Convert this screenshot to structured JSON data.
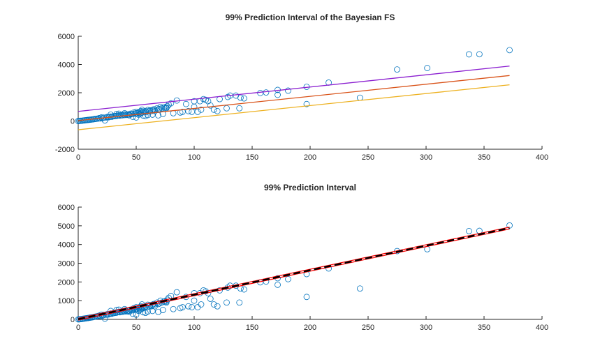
{
  "chart_data": [
    {
      "type": "scatter",
      "title": "99% Prediction Interval of the Bayesian FS",
      "xlim": [
        0,
        400
      ],
      "ylim": [
        -2000,
        6000
      ],
      "xticks": [
        "0",
        "50",
        "100",
        "150",
        "200",
        "250",
        "300",
        "350",
        "400"
      ],
      "yticks": [
        "-2000",
        "0",
        "2000",
        "4000",
        "6000"
      ],
      "grid": false,
      "marker_color": "#0072BD",
      "lines": [
        {
          "role": "upper",
          "color": "#8B1FD0",
          "x": [
            0,
            372
          ],
          "y": [
            680,
            3890
          ]
        },
        {
          "role": "fit",
          "color": "#D95319",
          "x": [
            0,
            372
          ],
          "y": [
            30,
            3220
          ]
        },
        {
          "role": "lower",
          "color": "#EDB120",
          "x": [
            0,
            372
          ],
          "y": [
            -620,
            2560
          ]
        }
      ]
    },
    {
      "type": "scatter",
      "title": "99% Prediction Interval",
      "xlim": [
        0,
        400
      ],
      "ylim": [
        0,
        6000
      ],
      "xticks": [
        "0",
        "50",
        "100",
        "150",
        "200",
        "250",
        "300",
        "350",
        "400"
      ],
      "yticks": [
        "0",
        "1000",
        "2000",
        "3000",
        "4000",
        "5000",
        "6000"
      ],
      "grid": false,
      "marker_color": "#0072BD",
      "lines": [
        {
          "role": "upper",
          "color": "#FF0000",
          "x": [
            0,
            372
          ],
          "y": [
            60,
            4930
          ]
        },
        {
          "role": "lower",
          "color": "#FF0000",
          "x": [
            0,
            372
          ],
          "y": [
            -40,
            4830
          ]
        },
        {
          "role": "fit",
          "color": "#000000",
          "dashed": true,
          "x": [
            0,
            372
          ],
          "y": [
            10,
            4880
          ]
        }
      ]
    }
  ],
  "points": {
    "x": [
      372,
      346,
      337,
      301,
      275,
      243,
      216,
      197,
      197,
      181,
      172,
      172,
      162,
      157,
      143,
      140,
      139,
      136,
      131,
      129,
      128,
      122,
      120,
      117,
      114,
      112,
      110,
      108,
      106,
      105,
      103,
      100,
      100,
      98,
      95,
      93,
      90,
      88,
      85,
      82,
      80,
      78,
      77,
      76,
      75,
      74,
      72,
      71,
      70,
      69,
      68,
      66,
      65,
      64,
      63,
      62,
      61,
      60,
      59,
      58,
      57,
      56,
      55,
      55,
      54,
      54,
      53,
      53,
      52,
      52,
      51,
      50,
      50,
      49,
      48,
      47,
      46,
      45,
      44,
      43,
      42,
      41,
      40,
      39,
      38,
      37,
      36,
      35,
      34,
      33,
      32,
      31,
      30,
      29,
      28,
      27,
      26,
      25,
      24,
      23,
      22,
      21,
      20,
      19,
      18,
      17,
      16,
      15,
      14,
      13,
      12,
      11,
      10,
      9,
      8,
      7,
      6,
      5,
      4,
      3,
      2,
      1,
      1,
      0,
      56,
      60,
      64,
      69,
      73,
      47,
      50,
      58,
      66,
      76,
      33,
      40,
      44,
      35,
      28
    ],
    "y": [
      5020,
      4730,
      4720,
      3750,
      3650,
      1650,
      2720,
      2420,
      1200,
      2150,
      2200,
      1850,
      2020,
      1980,
      1600,
      1650,
      900,
      1800,
      1800,
      1700,
      900,
      1550,
      700,
      800,
      1100,
      1400,
      1500,
      1550,
      800,
      1400,
      650,
      1000,
      1400,
      650,
      700,
      1200,
      650,
      600,
      1450,
      550,
      1250,
      1150,
      1050,
      900,
      980,
      950,
      900,
      1000,
      850,
      820,
      900,
      800,
      820,
      780,
      700,
      760,
      700,
      780,
      650,
      700,
      620,
      680,
      800,
      600,
      700,
      550,
      650,
      500,
      600,
      450,
      550,
      560,
      650,
      520,
      600,
      500,
      480,
      520,
      460,
      470,
      430,
      480,
      420,
      450,
      400,
      420,
      380,
      400,
      380,
      360,
      350,
      340,
      330,
      300,
      310,
      290,
      260,
      280,
      250,
      40,
      240,
      200,
      250,
      180,
      200,
      170,
      160,
      150,
      140,
      120,
      110,
      100,
      90,
      80,
      70,
      60,
      50,
      40,
      30,
      20,
      15,
      10,
      5,
      0,
      380,
      420,
      450,
      400,
      500,
      300,
      250,
      350,
      700,
      950,
      500,
      550,
      400,
      520,
      450
    ]
  }
}
